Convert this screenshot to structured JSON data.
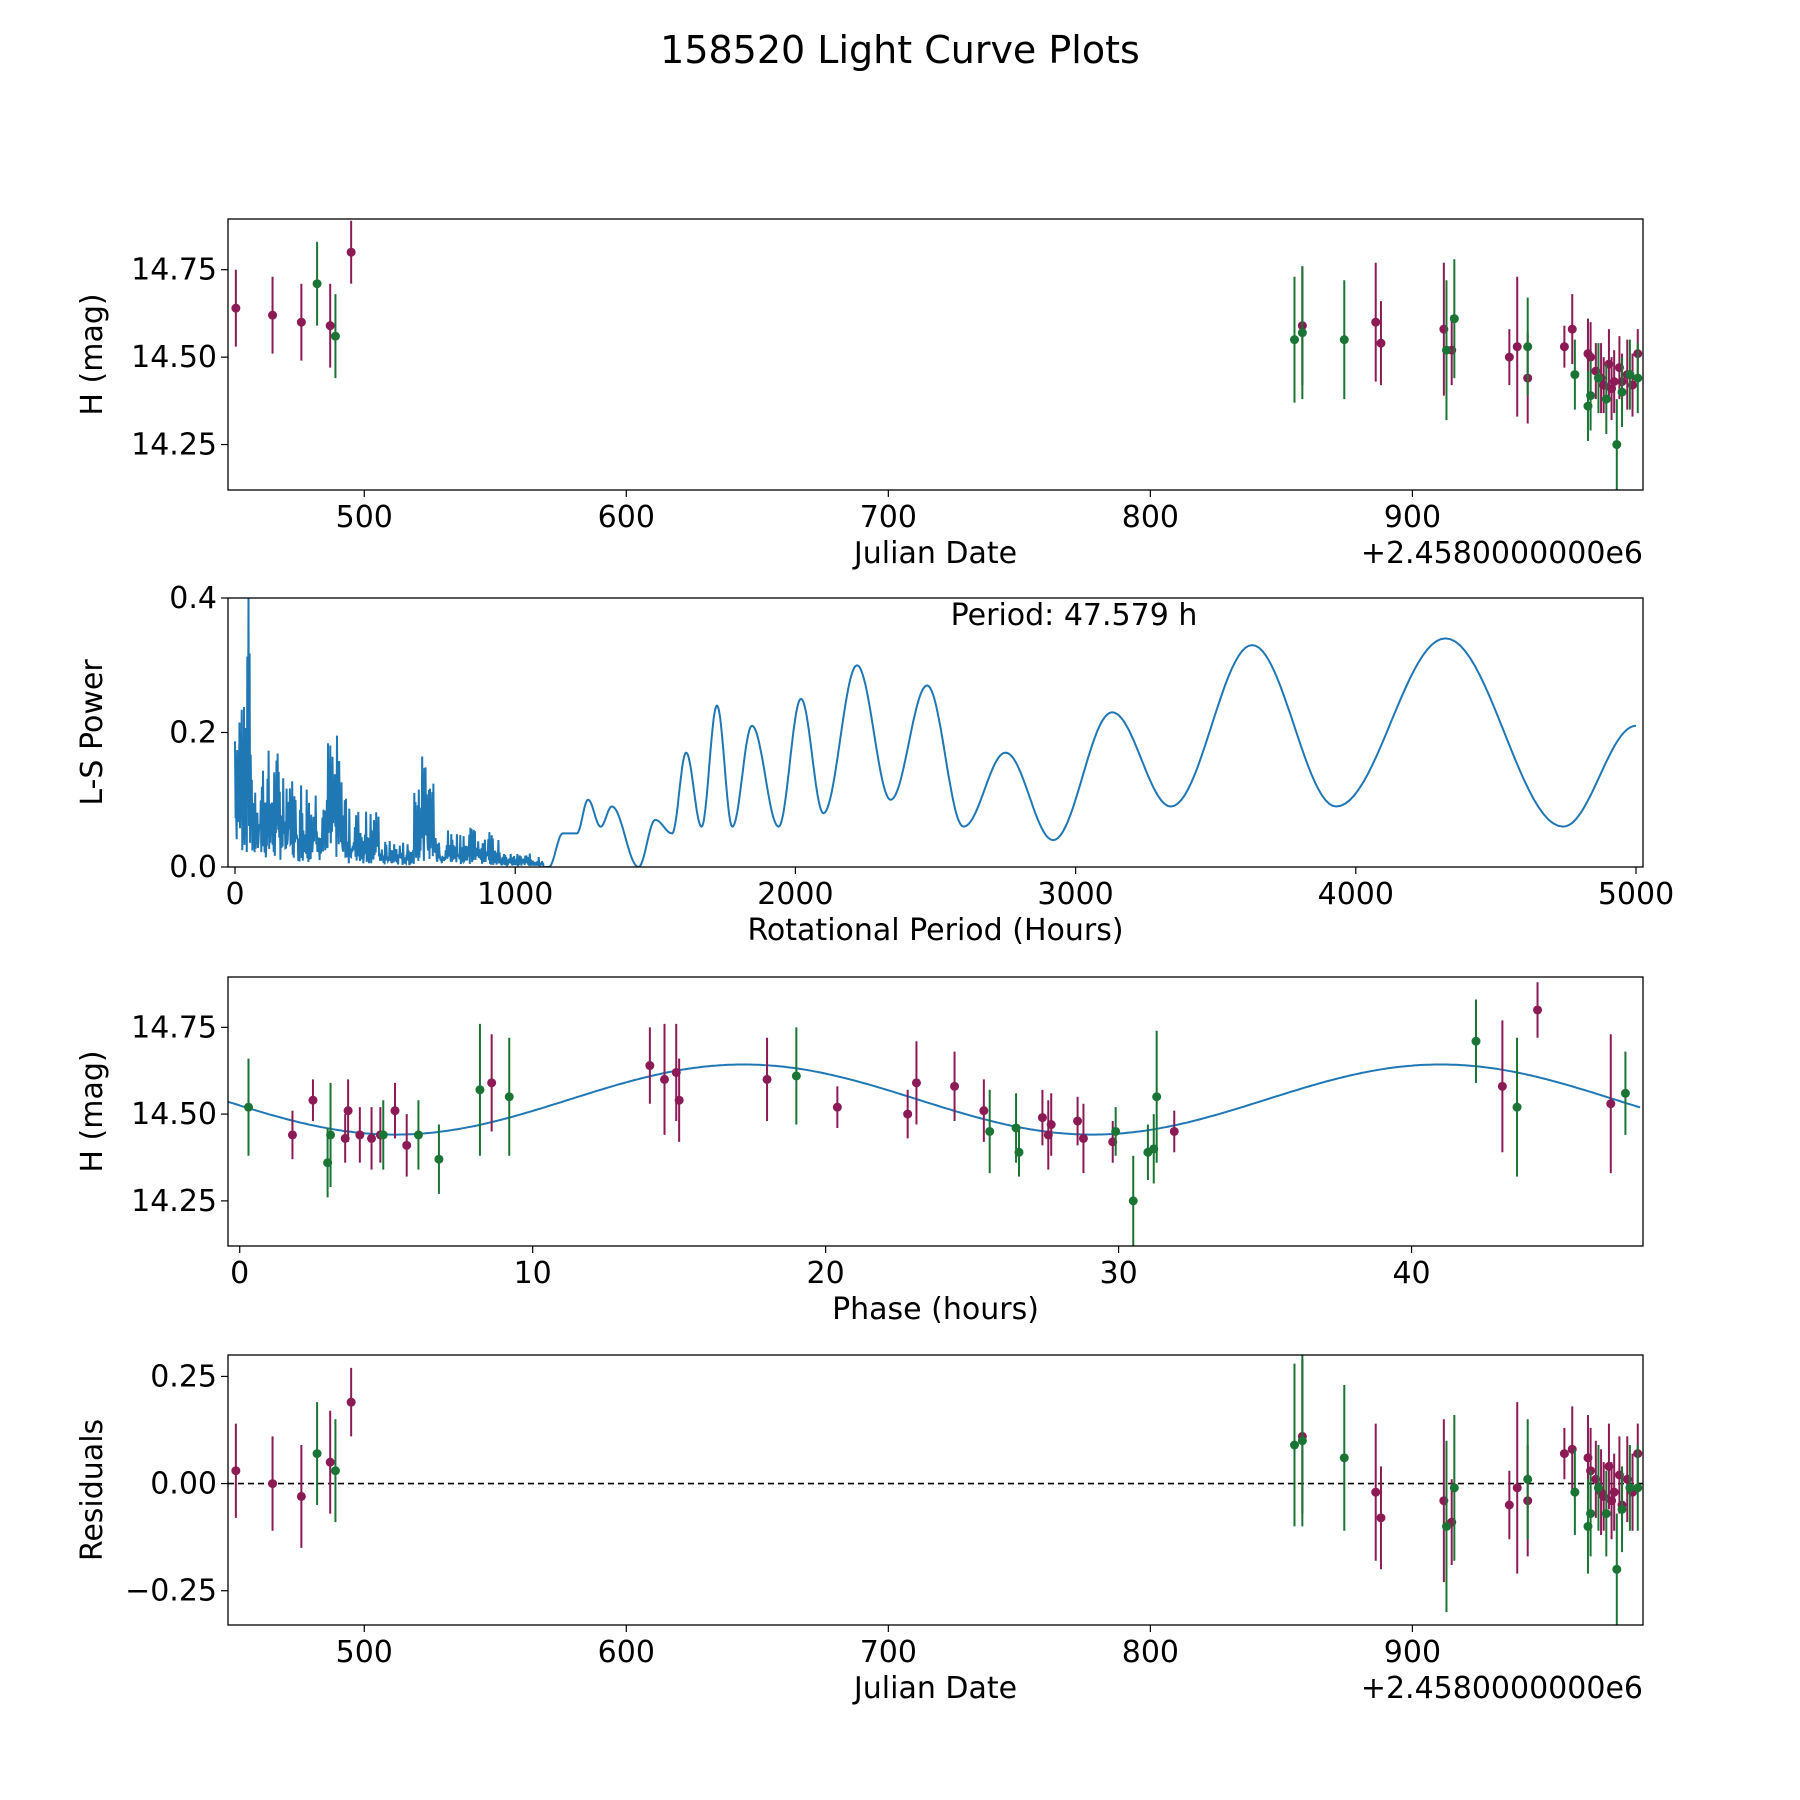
{
  "figure": {
    "title": "158520 Light Curve Plots"
  },
  "colors": {
    "band_a": "#8b1a55",
    "band_b": "#1a7535",
    "line": "#1f77b4",
    "axis": "#000000"
  },
  "chart_data": [
    {
      "id": "lightcurve",
      "type": "scatter",
      "title": "",
      "xlabel": "Julian Date",
      "ylabel": "H (mag)",
      "offset_label": "+2.4580000000e6",
      "xlim": [
        448,
        988
      ],
      "ylim": [
        14.12,
        14.895
      ],
      "xticks": [
        500,
        600,
        700,
        800,
        900
      ],
      "yticks": [
        14.25,
        14.5,
        14.75
      ],
      "ytick_labels": [
        "14.25",
        "14.50",
        "14.75"
      ],
      "series": [
        {
          "name": "band_a",
          "color": "#8b1a55",
          "points": [
            [
              451,
              14.64,
              0.11
            ],
            [
              465,
              14.62,
              0.11
            ],
            [
              476,
              14.6,
              0.11
            ],
            [
              487,
              14.59,
              0.12
            ],
            [
              495,
              14.8,
              0.09
            ],
            [
              858,
              14.59,
              0.17
            ],
            [
              886,
              14.6,
              0.17
            ],
            [
              888,
              14.54,
              0.12
            ],
            [
              912,
              14.58,
              0.19
            ],
            [
              915,
              14.52,
              0.1
            ],
            [
              937,
              14.5,
              0.08
            ],
            [
              940,
              14.53,
              0.2
            ],
            [
              944,
              14.44,
              0.13
            ],
            [
              958,
              14.53,
              0.06
            ],
            [
              961,
              14.58,
              0.1
            ],
            [
              967,
              14.51,
              0.1
            ],
            [
              968,
              14.5,
              0.1
            ],
            [
              970,
              14.46,
              0.08
            ],
            [
              972,
              14.44,
              0.1
            ],
            [
              973,
              14.42,
              0.08
            ],
            [
              975,
              14.48,
              0.1
            ],
            [
              976,
              14.41,
              0.09
            ],
            [
              977,
              14.43,
              0.09
            ],
            [
              979,
              14.47,
              0.09
            ],
            [
              980,
              14.43,
              0.08
            ],
            [
              982,
              14.45,
              0.1
            ],
            [
              984,
              14.42,
              0.09
            ],
            [
              986,
              14.51,
              0.07
            ]
          ]
        },
        {
          "name": "band_b",
          "color": "#1a7535",
          "points": [
            [
              482,
              14.71,
              0.12
            ],
            [
              489,
              14.56,
              0.12
            ],
            [
              855,
              14.55,
              0.18
            ],
            [
              858,
              14.57,
              0.19
            ],
            [
              874,
              14.55,
              0.17
            ],
            [
              913,
              14.52,
              0.2
            ],
            [
              916,
              14.61,
              0.17
            ],
            [
              944,
              14.53,
              0.14
            ],
            [
              962,
              14.45,
              0.1
            ],
            [
              967,
              14.36,
              0.1
            ],
            [
              968,
              14.39,
              0.1
            ],
            [
              971,
              14.44,
              0.1
            ],
            [
              974,
              14.38,
              0.1
            ],
            [
              978,
              14.25,
              0.13
            ],
            [
              980,
              14.4,
              0.1
            ],
            [
              983,
              14.45,
              0.1
            ],
            [
              986,
              14.44,
              0.1
            ]
          ]
        }
      ]
    },
    {
      "id": "periodogram",
      "type": "line",
      "title": "",
      "xlabel": "Rotational Period (Hours)",
      "ylabel": "L-S Power",
      "annotation": "Period: 47.579 h",
      "xlim": [
        -25,
        5025
      ],
      "ylim": [
        0,
        0.4
      ],
      "xticks": [
        0,
        1000,
        2000,
        3000,
        4000,
        5000
      ],
      "yticks": [
        0.0,
        0.2,
        0.4
      ],
      "ytick_labels": [
        "0.0",
        "0.2",
        "0.4"
      ],
      "peak": [
        48,
        0.41
      ],
      "maxima": [
        [
          1170,
          0.05
        ],
        [
          1260,
          0.1
        ],
        [
          1345,
          0.09
        ],
        [
          1500,
          0.07
        ],
        [
          1610,
          0.17
        ],
        [
          1720,
          0.24
        ],
        [
          1845,
          0.21
        ],
        [
          2020,
          0.25
        ],
        [
          2220,
          0.3
        ],
        [
          2470,
          0.27
        ],
        [
          2750,
          0.17
        ],
        [
          3130,
          0.23
        ],
        [
          3630,
          0.33
        ],
        [
          4320,
          0.34
        ]
      ],
      "minima": [
        [
          1120,
          0.0
        ],
        [
          1220,
          0.05
        ],
        [
          1305,
          0.06
        ],
        [
          1440,
          0.0
        ],
        [
          1560,
          0.05
        ],
        [
          1665,
          0.06
        ],
        [
          1775,
          0.06
        ],
        [
          1940,
          0.06
        ],
        [
          2100,
          0.08
        ],
        [
          2340,
          0.1
        ],
        [
          2600,
          0.06
        ],
        [
          2920,
          0.04
        ],
        [
          3340,
          0.09
        ],
        [
          3930,
          0.09
        ],
        [
          4740,
          0.06
        ]
      ],
      "end_value": [
        5000,
        0.21
      ]
    },
    {
      "id": "phase",
      "type": "scatter",
      "title": "",
      "xlabel": "Phase (hours)",
      "ylabel": "H (mag)",
      "xlim": [
        -0.4,
        47.9
      ],
      "ylim": [
        14.12,
        14.895
      ],
      "xticks": [
        0,
        10,
        20,
        30,
        40
      ],
      "yticks": [
        14.25,
        14.5,
        14.75
      ],
      "ytick_labels": [
        "14.25",
        "14.50",
        "14.75"
      ],
      "model": {
        "period": 47.579,
        "mean": 14.542,
        "amp": 0.101,
        "peak_phase": 17.2
      },
      "series": [
        {
          "name": "band_a",
          "color": "#8b1a55",
          "points": [
            [
              1.8,
              14.44,
              0.07
            ],
            [
              2.5,
              14.54,
              0.06
            ],
            [
              3.6,
              14.43,
              0.07
            ],
            [
              3.7,
              14.51,
              0.09
            ],
            [
              4.1,
              14.44,
              0.08
            ],
            [
              4.5,
              14.43,
              0.09
            ],
            [
              4.8,
              14.44,
              0.08
            ],
            [
              5.3,
              14.51,
              0.08
            ],
            [
              5.7,
              14.41,
              0.09
            ],
            [
              8.6,
              14.59,
              0.14
            ],
            [
              14.0,
              14.64,
              0.11
            ],
            [
              14.5,
              14.6,
              0.16
            ],
            [
              14.9,
              14.62,
              0.14
            ],
            [
              15.0,
              14.54,
              0.12
            ],
            [
              18.0,
              14.6,
              0.12
            ],
            [
              20.4,
              14.52,
              0.06
            ],
            [
              22.8,
              14.5,
              0.07
            ],
            [
              23.1,
              14.59,
              0.12
            ],
            [
              24.4,
              14.58,
              0.1
            ],
            [
              25.4,
              14.51,
              0.09
            ],
            [
              27.4,
              14.49,
              0.08
            ],
            [
              27.6,
              14.44,
              0.1
            ],
            [
              27.7,
              14.47,
              0.09
            ],
            [
              28.6,
              14.48,
              0.07
            ],
            [
              28.8,
              14.43,
              0.1
            ],
            [
              29.8,
              14.42,
              0.06
            ],
            [
              31.9,
              14.45,
              0.06
            ],
            [
              43.1,
              14.58,
              0.19
            ],
            [
              44.3,
              14.8,
              0.08
            ],
            [
              46.8,
              14.53,
              0.2
            ]
          ]
        },
        {
          "name": "band_b",
          "color": "#1a7535",
          "points": [
            [
              0.3,
              14.52,
              0.14
            ],
            [
              3.0,
              14.36,
              0.1
            ],
            [
              3.1,
              14.44,
              0.15
            ],
            [
              4.9,
              14.44,
              0.1
            ],
            [
              6.1,
              14.44,
              0.1
            ],
            [
              6.8,
              14.37,
              0.1
            ],
            [
              8.2,
              14.57,
              0.19
            ],
            [
              9.2,
              14.55,
              0.17
            ],
            [
              19.0,
              14.61,
              0.14
            ],
            [
              25.6,
              14.45,
              0.12
            ],
            [
              26.5,
              14.46,
              0.1
            ],
            [
              26.6,
              14.39,
              0.07
            ],
            [
              29.9,
              14.45,
              0.07
            ],
            [
              30.5,
              14.25,
              0.13
            ],
            [
              31.0,
              14.39,
              0.08
            ],
            [
              31.2,
              14.4,
              0.1
            ],
            [
              31.3,
              14.55,
              0.19
            ],
            [
              42.2,
              14.71,
              0.12
            ],
            [
              43.6,
              14.52,
              0.2
            ],
            [
              47.3,
              14.56,
              0.12
            ]
          ]
        }
      ]
    },
    {
      "id": "residuals",
      "type": "scatter",
      "title": "",
      "xlabel": "Julian Date",
      "ylabel": "Residuals",
      "offset_label": "+2.4580000000e6",
      "xlim": [
        448,
        988
      ],
      "ylim": [
        -0.33,
        0.3
      ],
      "xticks": [
        500,
        600,
        700,
        800,
        900
      ],
      "yticks": [
        -0.25,
        0.0,
        0.25
      ],
      "ytick_labels": [
        "−0.25",
        "0.00",
        "0.25"
      ],
      "zero_line": 0,
      "series": [
        {
          "name": "band_a",
          "color": "#8b1a55",
          "points": [
            [
              451,
              0.03,
              0.11
            ],
            [
              465,
              0.0,
              0.11
            ],
            [
              476,
              -0.03,
              0.12
            ],
            [
              487,
              0.05,
              0.12
            ],
            [
              495,
              0.19,
              0.08
            ],
            [
              858,
              0.11,
              0.18
            ],
            [
              886,
              -0.02,
              0.16
            ],
            [
              888,
              -0.08,
              0.12
            ],
            [
              912,
              -0.04,
              0.19
            ],
            [
              915,
              -0.09,
              0.1
            ],
            [
              937,
              -0.05,
              0.08
            ],
            [
              940,
              -0.01,
              0.2
            ],
            [
              944,
              -0.04,
              0.13
            ],
            [
              958,
              0.07,
              0.06
            ],
            [
              961,
              0.08,
              0.1
            ],
            [
              967,
              0.06,
              0.1
            ],
            [
              968,
              0.03,
              0.1
            ],
            [
              970,
              0.01,
              0.09
            ],
            [
              972,
              -0.02,
              0.1
            ],
            [
              973,
              -0.03,
              0.08
            ],
            [
              975,
              0.04,
              0.1
            ],
            [
              976,
              -0.04,
              0.09
            ],
            [
              977,
              -0.02,
              0.09
            ],
            [
              979,
              0.02,
              0.09
            ],
            [
              980,
              -0.05,
              0.08
            ],
            [
              982,
              0.01,
              0.1
            ],
            [
              984,
              -0.02,
              0.09
            ],
            [
              986,
              0.07,
              0.07
            ]
          ]
        },
        {
          "name": "band_b",
          "color": "#1a7535",
          "points": [
            [
              482,
              0.07,
              0.12
            ],
            [
              489,
              0.03,
              0.12
            ],
            [
              855,
              0.09,
              0.19
            ],
            [
              858,
              0.1,
              0.2
            ],
            [
              874,
              0.06,
              0.17
            ],
            [
              913,
              -0.1,
              0.2
            ],
            [
              916,
              -0.01,
              0.17
            ],
            [
              944,
              0.01,
              0.14
            ],
            [
              962,
              -0.02,
              0.1
            ],
            [
              967,
              -0.1,
              0.11
            ],
            [
              968,
              -0.07,
              0.1
            ],
            [
              971,
              -0.01,
              0.1
            ],
            [
              974,
              -0.07,
              0.1
            ],
            [
              978,
              -0.2,
              0.13
            ],
            [
              980,
              -0.06,
              0.1
            ],
            [
              983,
              -0.01,
              0.1
            ],
            [
              986,
              -0.01,
              0.1
            ]
          ]
        }
      ]
    }
  ]
}
